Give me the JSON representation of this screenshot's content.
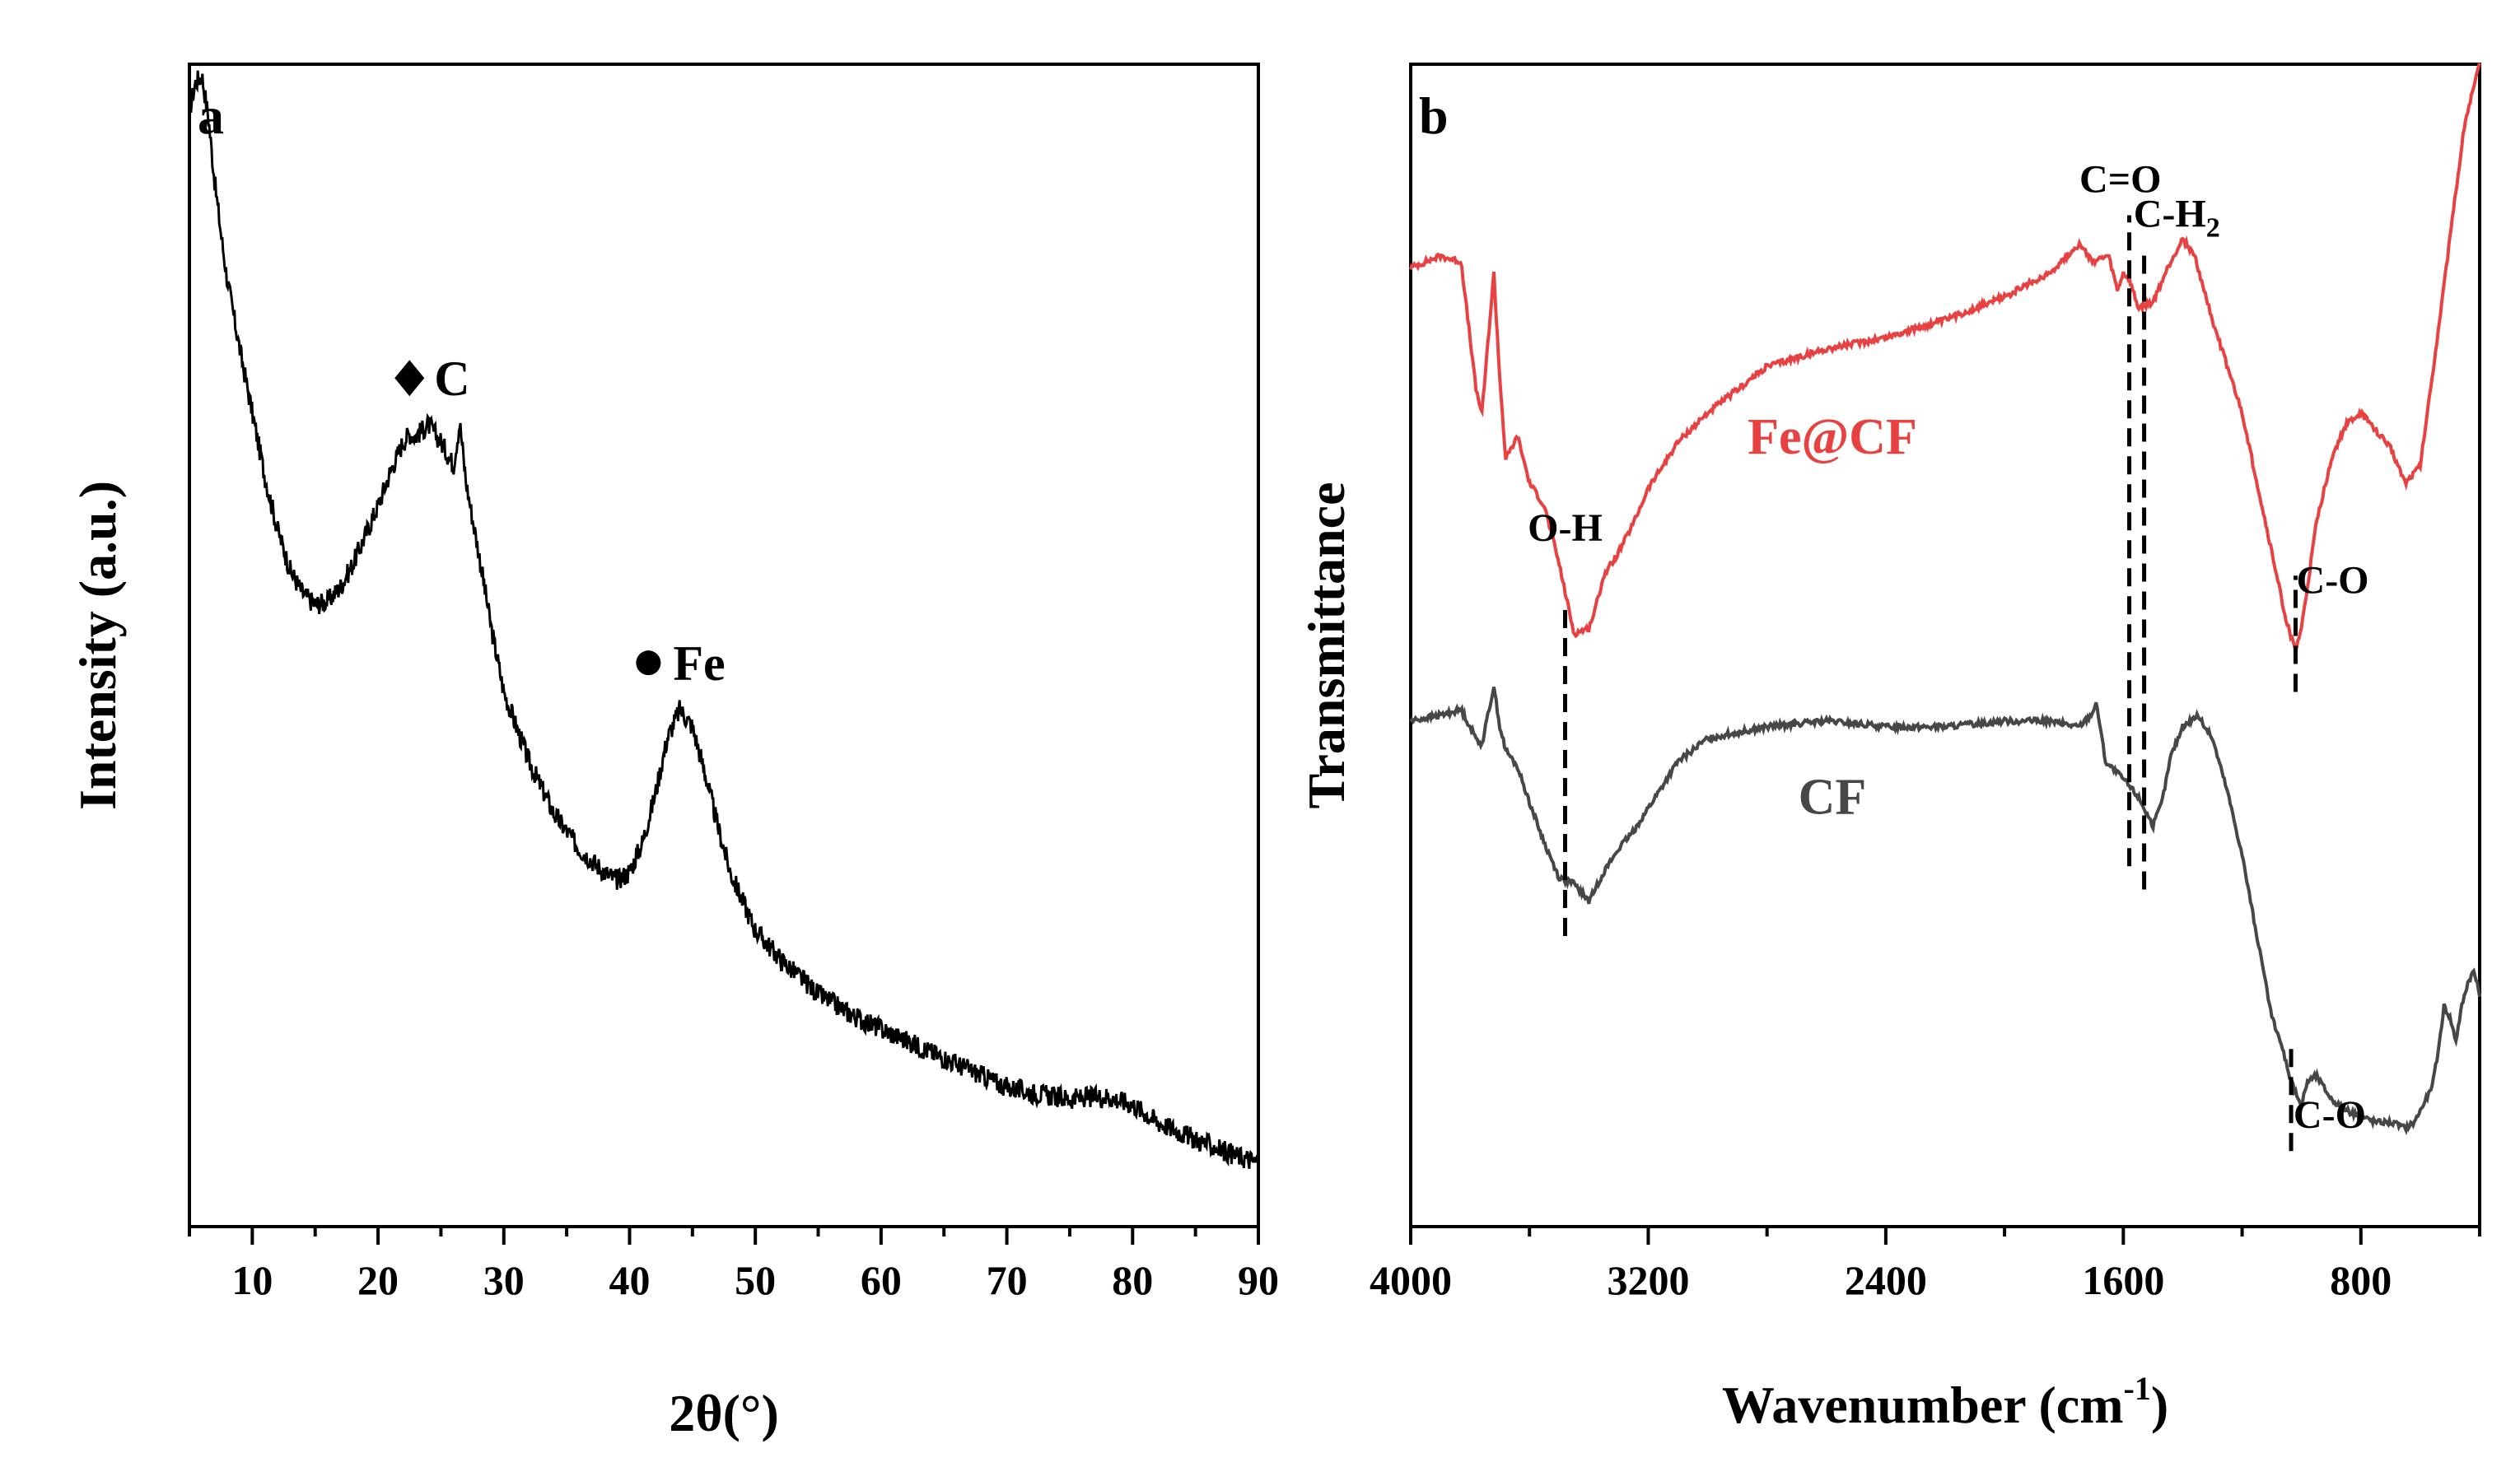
{
  "chart_data": [
    {
      "panel": "a",
      "type": "line",
      "xlabel": "2θ(°)",
      "ylabel": "Intensity (a.u.)",
      "xlim": [
        5,
        90
      ],
      "ylim": [
        0,
        10
      ],
      "xticks": [
        10,
        20,
        30,
        40,
        50,
        60,
        70,
        80,
        90
      ],
      "x_minor_step": 5,
      "y_ticks": false,
      "grid": false,
      "series": [
        {
          "color": "#000000",
          "x": [
            5,
            5.5,
            6,
            6.5,
            7,
            7.5,
            8,
            9,
            10,
            11,
            12,
            13,
            14,
            15,
            16,
            17,
            18,
            19,
            20,
            21,
            22,
            22.5,
            23,
            24,
            25,
            26,
            26.5,
            27,
            28,
            29,
            30,
            32,
            34,
            36,
            38,
            39,
            40,
            41,
            42,
            43,
            44,
            45,
            46,
            47,
            48,
            50,
            52,
            55,
            58,
            60,
            62,
            65,
            68,
            70,
            72,
            75,
            78,
            80,
            82,
            85,
            88,
            90
          ],
          "y": [
            9.6,
            9.85,
            9.9,
            9.55,
            9.0,
            8.55,
            8.15,
            7.55,
            7.0,
            6.45,
            6.0,
            5.65,
            5.45,
            5.35,
            5.38,
            5.5,
            5.7,
            5.95,
            6.2,
            6.5,
            6.75,
            6.82,
            6.8,
            6.9,
            6.75,
            6.55,
            6.92,
            6.4,
            5.8,
            5.15,
            4.6,
            4.0,
            3.55,
            3.25,
            3.05,
            2.98,
            3.05,
            3.3,
            3.7,
            4.2,
            4.45,
            4.3,
            3.9,
            3.45,
            3.05,
            2.55,
            2.3,
            2.0,
            1.8,
            1.7,
            1.6,
            1.45,
            1.3,
            1.2,
            1.15,
            1.1,
            1.12,
            1.05,
            0.9,
            0.75,
            0.62,
            0.55
          ]
        }
      ],
      "annotations": [
        {
          "marker": "diamond",
          "text": "C",
          "x": 22.5,
          "y": 7.3
        },
        {
          "marker": "circle",
          "text": "Fe",
          "x": 41.5,
          "y": 4.85
        }
      ]
    },
    {
      "panel": "b",
      "type": "line",
      "xlabel": "Wavenumber (cm",
      "xlabel_superscript": "-1",
      "xlabel_suffix": ")",
      "ylabel": "Transmittance",
      "xlim": [
        4000,
        400
      ],
      "ylim": [
        0,
        10
      ],
      "xticks": [
        4000,
        3200,
        2400,
        1600,
        800
      ],
      "x_minor_step": 400,
      "y_ticks": false,
      "grid": false,
      "series": [
        {
          "name": "Fe@CF",
          "color": "#e84142",
          "x": [
            4000,
            3900,
            3830,
            3780,
            3760,
            3740,
            3720,
            3700,
            3680,
            3640,
            3600,
            3550,
            3500,
            3450,
            3400,
            3380,
            3350,
            3300,
            3250,
            3200,
            3100,
            3000,
            2800,
            2600,
            2400,
            2200,
            2000,
            1850,
            1750,
            1700,
            1650,
            1620,
            1600,
            1580,
            1550,
            1500,
            1450,
            1400,
            1360,
            1300,
            1200,
            1100,
            1050,
            1020,
            1000,
            980,
            950,
            900,
            850,
            800,
            750,
            700,
            650,
            600,
            550,
            500,
            450,
            400
          ],
          "x_sorted_desc": true,
          "y": [
            8.25,
            8.35,
            8.3,
            7.2,
            7.0,
            7.6,
            8.2,
            7.3,
            6.6,
            6.8,
            6.4,
            6.2,
            5.7,
            5.1,
            5.15,
            5.3,
            5.6,
            5.8,
            6.05,
            6.35,
            6.75,
            7.0,
            7.4,
            7.55,
            7.65,
            7.8,
            8.0,
            8.2,
            8.45,
            8.3,
            8.35,
            8.05,
            8.2,
            8.15,
            7.9,
            7.95,
            8.25,
            8.5,
            8.35,
            7.8,
            7.0,
            5.8,
            5.2,
            4.95,
            5.15,
            5.5,
            6.05,
            6.6,
            6.9,
            7.0,
            6.85,
            6.7,
            6.4,
            6.55,
            7.5,
            8.5,
            9.5,
            10.0
          ]
        },
        {
          "name": "CF",
          "color": "#474747",
          "x": [
            4000,
            3900,
            3830,
            3780,
            3760,
            3740,
            3720,
            3700,
            3680,
            3640,
            3600,
            3550,
            3500,
            3450,
            3400,
            3380,
            3350,
            3300,
            3250,
            3200,
            3100,
            3000,
            2800,
            2600,
            2400,
            2200,
            2000,
            1850,
            1750,
            1710,
            1690,
            1660,
            1600,
            1550,
            1500,
            1470,
            1440,
            1400,
            1350,
            1300,
            1250,
            1200,
            1150,
            1100,
            1060,
            1040,
            1020,
            1000,
            980,
            950,
            900,
            850,
            800,
            750,
            700,
            650,
            620,
            600,
            560,
            540,
            520,
            500,
            480,
            460,
            440,
            420,
            400
          ],
          "x_sorted_desc": true,
          "y": [
            4.35,
            4.4,
            4.45,
            4.2,
            4.15,
            4.4,
            4.65,
            4.3,
            4.1,
            3.95,
            3.65,
            3.3,
            3.0,
            2.95,
            2.8,
            2.9,
            3.05,
            3.25,
            3.4,
            3.6,
            4.0,
            4.2,
            4.3,
            4.35,
            4.3,
            4.3,
            4.35,
            4.35,
            4.3,
            4.4,
            4.5,
            4.0,
            3.85,
            3.7,
            3.45,
            3.65,
            4.05,
            4.3,
            4.4,
            4.2,
            3.75,
            3.2,
            2.5,
            1.8,
            1.5,
            1.3,
            1.15,
            1.05,
            1.25,
            1.3,
            1.1,
            1.0,
            0.95,
            0.9,
            0.9,
            0.85,
            0.9,
            1.0,
            1.2,
            1.5,
            1.9,
            1.8,
            1.6,
            1.9,
            2.1,
            2.2,
            2.0
          ]
        }
      ],
      "vlines": [
        {
          "x": 3480,
          "y_from": 2.5,
          "y_to": 5.35,
          "label": "O-H",
          "label_x": 3480,
          "label_y": 5.9
        },
        {
          "x": 1580,
          "y_from": 3.1,
          "y_to": 8.7,
          "label": "C=O",
          "label_x": 1610,
          "label_y": 8.9
        },
        {
          "x": 1530,
          "y_from": 2.9,
          "y_to": 8.4,
          "label": "C-H",
          "label_sub": "2",
          "label_x": 1420,
          "label_y": 8.6
        },
        {
          "x": 1020,
          "y_from": 4.6,
          "y_to": 5.6,
          "label": "C-O",
          "label_x": 895,
          "label_y": 5.45
        },
        {
          "x": 1035,
          "y_from": 0.65,
          "y_to": 1.55,
          "label": "C-O",
          "label_x": 905,
          "label_y": 0.85
        }
      ],
      "series_labels": [
        {
          "series": "Fe@CF",
          "x": 2580,
          "y": 6.65
        },
        {
          "series": "CF",
          "x": 2580,
          "y": 3.55
        }
      ]
    }
  ]
}
